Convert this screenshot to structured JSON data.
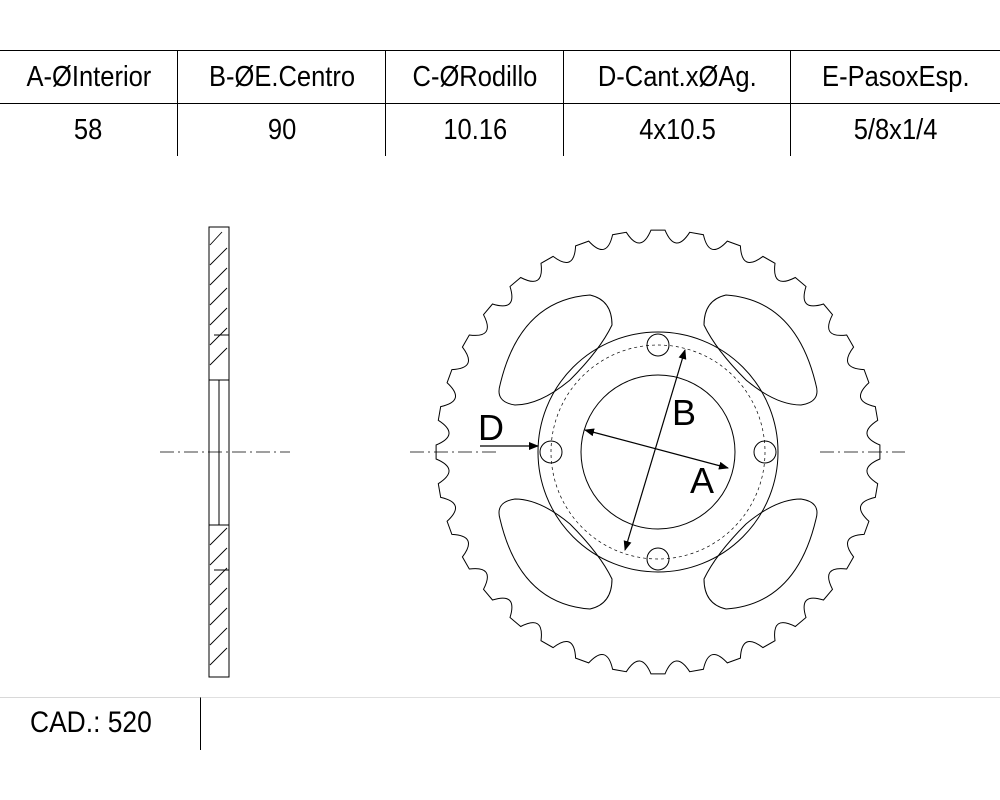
{
  "specs": {
    "headers": [
      "A-ØInterior",
      "B-ØE.Centro",
      "C-ØRodillo",
      "D-Cant.xØAg.",
      "E-PasoxEsp."
    ],
    "values": [
      "58",
      "90",
      "10.16",
      "4x10.5",
      "5/8x1/4"
    ]
  },
  "drawing": {
    "labels": {
      "a": "A",
      "b": "B",
      "d": "D"
    },
    "sprocket": {
      "teeth": 36,
      "bolt_holes": 4,
      "lightening_cutouts": 4
    }
  },
  "footer": {
    "cad_text": "CAD.: 520"
  }
}
